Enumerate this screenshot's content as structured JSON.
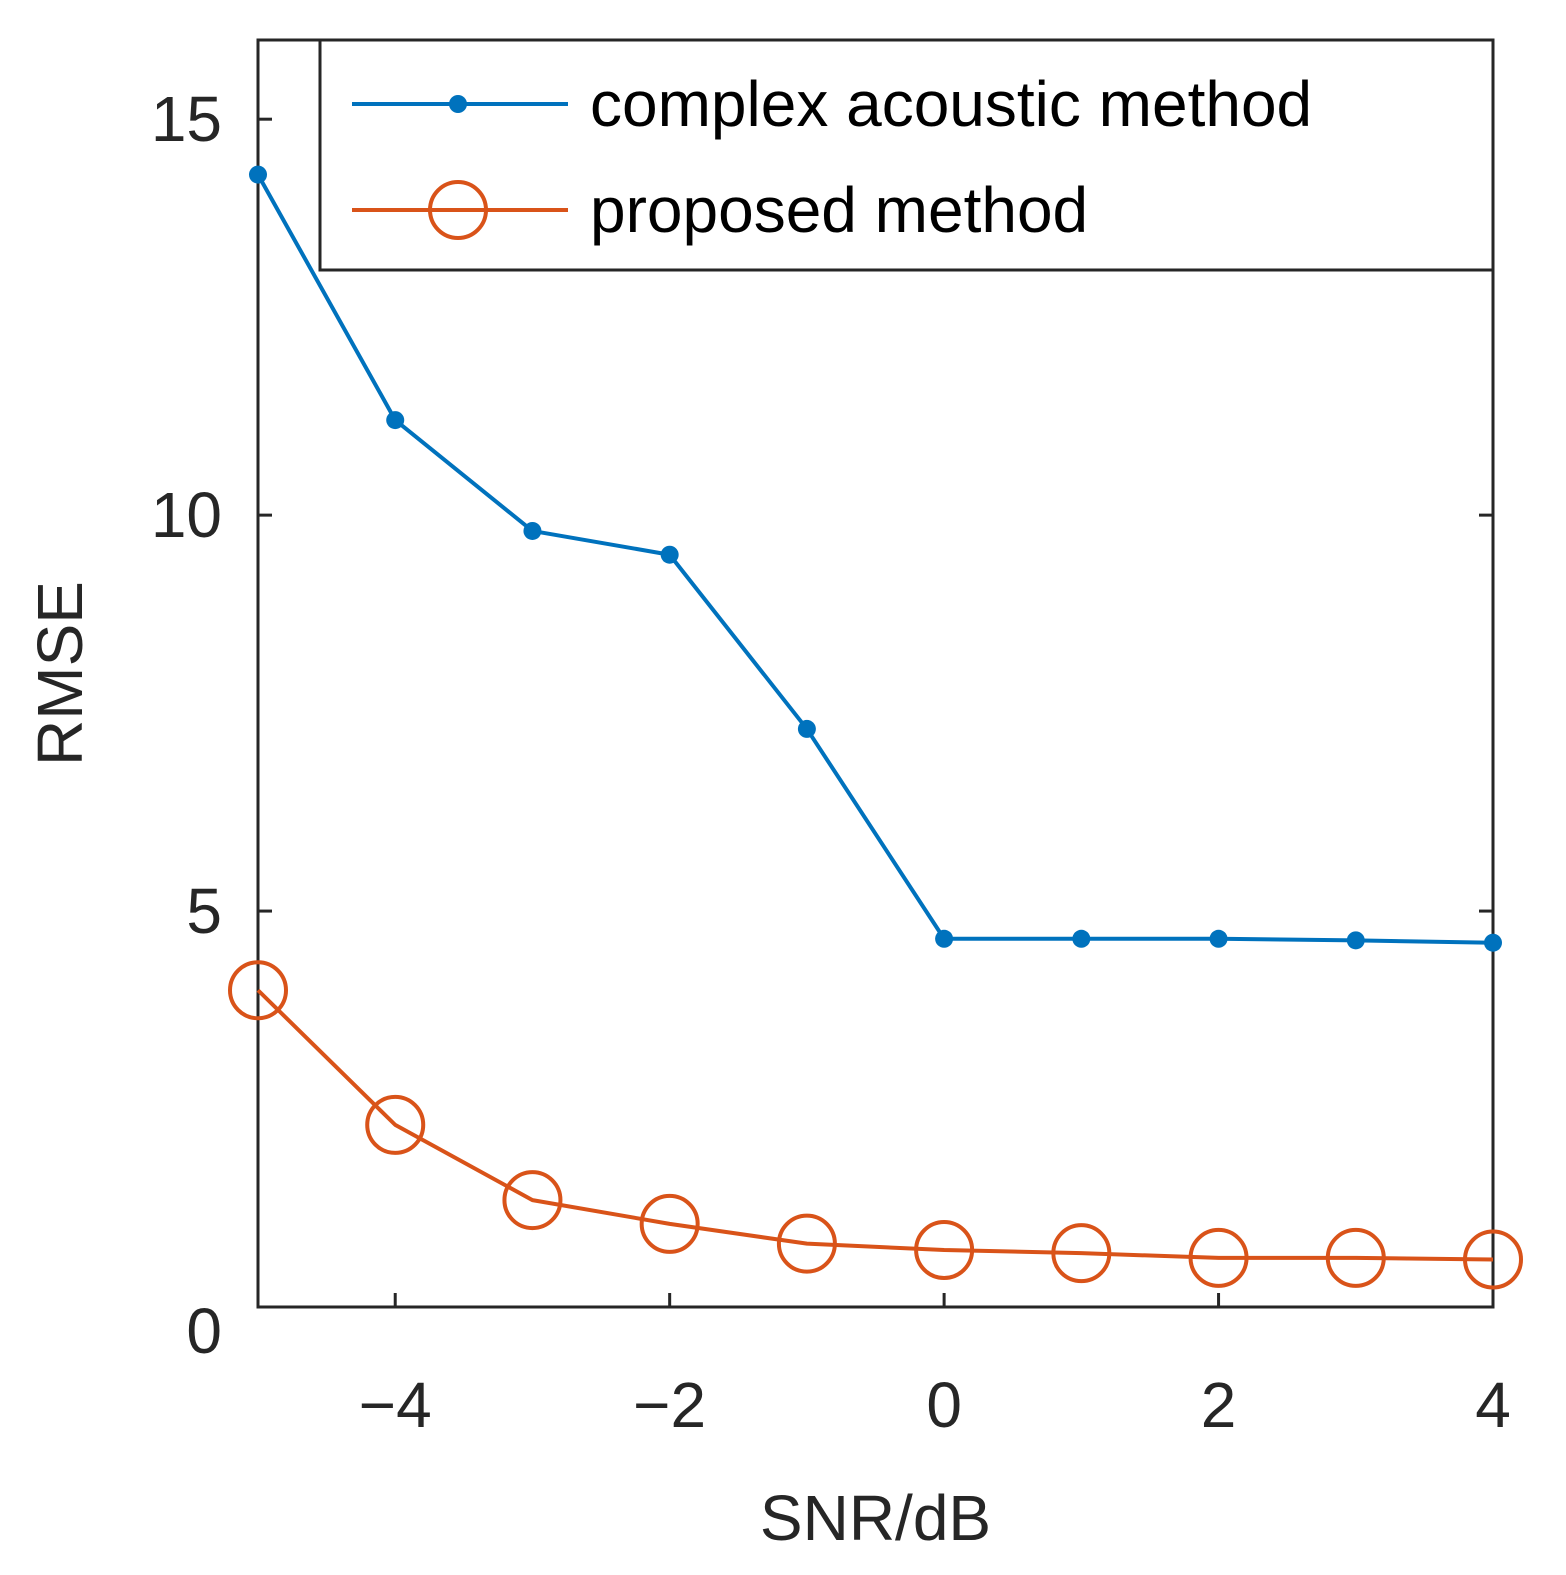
{
  "chart_data": {
    "type": "line",
    "title": "",
    "xlabel": "SNR/dB",
    "ylabel": "RMSE",
    "xlim": [
      -5,
      4
    ],
    "ylim": [
      0,
      16
    ],
    "xticks": [
      -4,
      -2,
      0,
      2,
      4
    ],
    "xtick_labels": [
      "−4",
      "−2",
      "0",
      "2",
      "4"
    ],
    "yticks": [
      0,
      5,
      10,
      15
    ],
    "ytick_labels": [
      "0",
      "5",
      "10",
      "15"
    ],
    "grid": false,
    "legend_position": "top-right",
    "x": [
      -5,
      -4,
      -3,
      -2,
      -1,
      0,
      1,
      2,
      3,
      4
    ],
    "series": [
      {
        "name": "complex acoustic method",
        "color": "#0072BD",
        "marker": "dot",
        "values": [
          14.3,
          11.2,
          9.8,
          9.5,
          7.3,
          4.65,
          4.65,
          4.65,
          4.63,
          4.6
        ]
      },
      {
        "name": "proposed method",
        "color": "#D95319",
        "marker": "circle",
        "values": [
          4.0,
          2.3,
          1.35,
          1.05,
          0.8,
          0.72,
          0.68,
          0.62,
          0.62,
          0.6
        ]
      }
    ]
  }
}
